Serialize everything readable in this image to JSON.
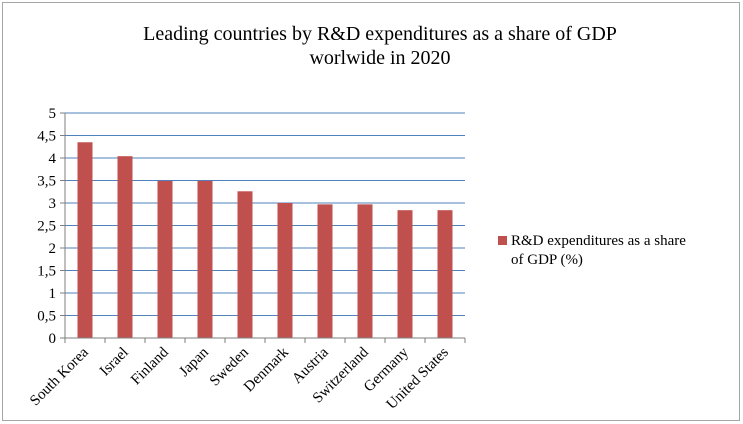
{
  "chart_data": {
    "type": "bar",
    "title_lines": [
      "Leading countries by R&D expenditures as a share of GDP",
      "worlwide in 2020"
    ],
    "categories": [
      "South Korea",
      "Israel",
      "Finland",
      "Japan",
      "Sweden",
      "Denmark",
      "Austria",
      "Switzerland",
      "Germany",
      "United States"
    ],
    "series": [
      {
        "name": "R&D expenditures as a share of GDP (%)",
        "legend_lines": [
          "R&D expenditures as a share",
          "of GDP (%)"
        ],
        "values": [
          4.35,
          4.04,
          3.49,
          3.49,
          3.26,
          3.0,
          2.97,
          2.97,
          2.84,
          2.84
        ],
        "color": "#c0504d"
      }
    ],
    "ylim": [
      0,
      5
    ],
    "yticks": [
      0,
      0.5,
      1,
      1.5,
      2,
      2.5,
      3,
      3.5,
      4,
      4.5,
      5
    ],
    "ytick_labels": [
      "0",
      "0,5",
      "1",
      "1,5",
      "2",
      "2,5",
      "3",
      "3,5",
      "4",
      "4,5",
      "5"
    ],
    "grid": true,
    "gridline_color": "#4f81bd",
    "legend_position": "right"
  }
}
